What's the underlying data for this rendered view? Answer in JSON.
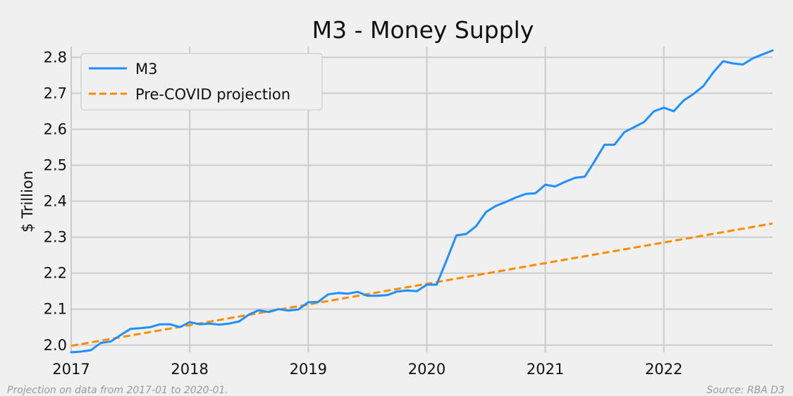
{
  "chart_data": {
    "type": "line",
    "title": "M3 - Money Supply",
    "xlabel": "",
    "ylabel": "$ Trillion",
    "xlim": [
      2017.0,
      2022.917
    ],
    "ylim": [
      1.98,
      2.83
    ],
    "x_ticks": [
      2017,
      2018,
      2019,
      2020,
      2021,
      2022
    ],
    "x_tick_labels": [
      "2017",
      "2018",
      "2019",
      "2020",
      "2021",
      "2022"
    ],
    "y_ticks": [
      2.0,
      2.1,
      2.2,
      2.3,
      2.4,
      2.5,
      2.6,
      2.7,
      2.8
    ],
    "y_tick_labels": [
      "2.0",
      "2.1",
      "2.2",
      "2.3",
      "2.4",
      "2.5",
      "2.6",
      "2.7",
      "2.8"
    ],
    "grid": true,
    "legend_position": "top-left",
    "colors": {
      "M3": "#1e90ff",
      "projection": "#ff8c00",
      "background": "#f0f0f0",
      "grid": "#cbcbcb"
    },
    "series": [
      {
        "name": "M3",
        "style": "solid",
        "x": [
          2017.0,
          2017.083,
          2017.167,
          2017.25,
          2017.333,
          2017.417,
          2017.5,
          2017.583,
          2017.667,
          2017.75,
          2017.833,
          2017.917,
          2018.0,
          2018.083,
          2018.167,
          2018.25,
          2018.333,
          2018.417,
          2018.5,
          2018.583,
          2018.667,
          2018.75,
          2018.833,
          2018.917,
          2019.0,
          2019.083,
          2019.167,
          2019.25,
          2019.333,
          2019.417,
          2019.5,
          2019.583,
          2019.667,
          2019.75,
          2019.833,
          2019.917,
          2020.0,
          2020.083,
          2020.167,
          2020.25,
          2020.333,
          2020.417,
          2020.5,
          2020.583,
          2020.667,
          2020.75,
          2020.833,
          2020.917,
          2021.0,
          2021.083,
          2021.167,
          2021.25,
          2021.333,
          2021.417,
          2021.5,
          2021.583,
          2021.667,
          2021.75,
          2021.833,
          2021.917,
          2022.0,
          2022.083,
          2022.167,
          2022.25,
          2022.333,
          2022.417,
          2022.5,
          2022.583,
          2022.667,
          2022.75,
          2022.833,
          2022.917
        ],
        "values": [
          1.98,
          1.982,
          1.986,
          2.006,
          2.01,
          2.028,
          2.045,
          2.047,
          2.05,
          2.058,
          2.058,
          2.05,
          2.064,
          2.058,
          2.06,
          2.057,
          2.06,
          2.066,
          2.085,
          2.097,
          2.092,
          2.1,
          2.096,
          2.099,
          2.119,
          2.12,
          2.141,
          2.145,
          2.143,
          2.148,
          2.137,
          2.137,
          2.139,
          2.149,
          2.152,
          2.15,
          2.168,
          2.168,
          2.236,
          2.305,
          2.309,
          2.331,
          2.37,
          2.387,
          2.398,
          2.41,
          2.42,
          2.422,
          2.446,
          2.441,
          2.454,
          2.465,
          2.468,
          2.512,
          2.557,
          2.557,
          2.592,
          2.606,
          2.62,
          2.65,
          2.66,
          2.65,
          2.68,
          2.698,
          2.72,
          2.758,
          2.789,
          2.783,
          2.78,
          2.797,
          2.808,
          2.819
        ]
      },
      {
        "name": "Pre-COVID projection",
        "style": "dashed",
        "x": [
          2017.0,
          2022.917
        ],
        "values": [
          1.998,
          2.338
        ]
      }
    ],
    "annotations": {
      "left": "Projection on data from 2017-01 to 2020-01.",
      "right": "Source: RBA D3"
    }
  }
}
